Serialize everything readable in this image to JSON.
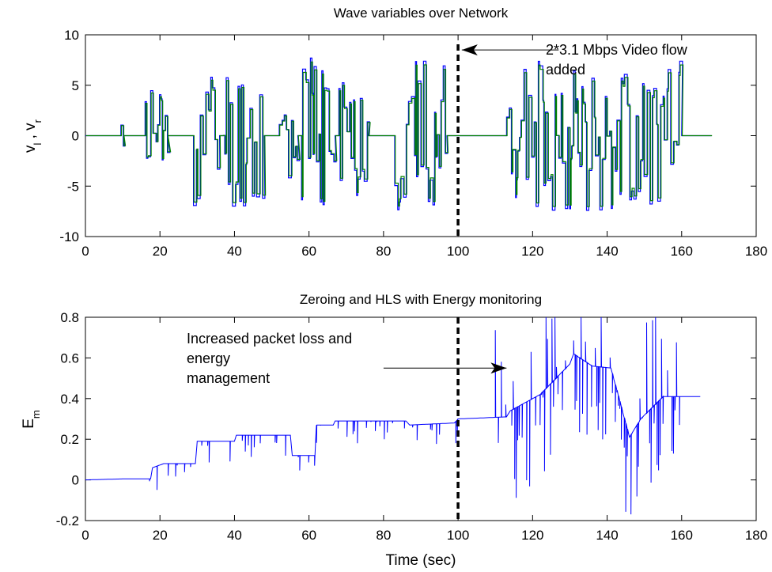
{
  "chart_data": [
    {
      "type": "line",
      "title": "Wave variables over Network",
      "xlabel": "",
      "ylabel": "v_l , v_r",
      "ylabel_parts": {
        "base1": "v",
        "sub1": "l",
        "sep": " , ",
        "base2": "v",
        "sub2": "r"
      },
      "xlim": [
        0,
        180
      ],
      "ylim": [
        -10,
        10
      ],
      "xticks": [
        "0",
        "20",
        "40",
        "60",
        "80",
        "100",
        "120",
        "140",
        "160",
        "180"
      ],
      "yticks": [
        "-10",
        "-5",
        "0",
        "5",
        "10"
      ],
      "grid": false,
      "legend": "none",
      "colors": {
        "v_l": "#0000ff",
        "v_r": "#007f00"
      },
      "bursts": [
        [
          9.5,
          10.2,
          1.3
        ],
        [
          16,
          22,
          6.5
        ],
        [
          29,
          36,
          7.5
        ],
        [
          37,
          48,
          7.5
        ],
        [
          52,
          57,
          5.0
        ],
        [
          58,
          67,
          8.0
        ],
        [
          68,
          76,
          7.0
        ],
        [
          83,
          97,
          8.0
        ],
        [
          113,
          160,
          7.5
        ]
      ],
      "marker": {
        "x": 100,
        "style": "dashed"
      },
      "annotation": {
        "lines": [
          "2*3.1 Mbps Video flow",
          "added"
        ],
        "arrow_from": [
          127,
          8.5
        ],
        "arrow_to": [
          101,
          8.5
        ]
      },
      "x_extent": [
        0,
        168
      ]
    },
    {
      "type": "line",
      "title": "Zeroing and HLS with Energy monitoring",
      "xlabel": "Time (sec)",
      "ylabel": "E_m",
      "ylabel_parts": {
        "base1": "E",
        "sub1": "m"
      },
      "xlim": [
        0,
        180
      ],
      "ylim": [
        -0.2,
        0.8
      ],
      "xticks": [
        "0",
        "20",
        "40",
        "60",
        "80",
        "100",
        "120",
        "140",
        "160",
        "180"
      ],
      "yticks": [
        "-0.2",
        "0",
        "0.2",
        "0.4",
        "0.6",
        "0.8"
      ],
      "grid": false,
      "legend": "none",
      "colors": {
        "E_m": "#0000ff"
      },
      "baseline": [
        [
          0,
          0.0
        ],
        [
          10,
          0.005
        ],
        [
          17.5,
          0.005
        ],
        [
          18,
          0.06
        ],
        [
          21,
          0.08
        ],
        [
          29.5,
          0.08
        ],
        [
          30,
          0.19
        ],
        [
          40,
          0.19
        ],
        [
          40.5,
          0.22
        ],
        [
          55,
          0.22
        ],
        [
          55.5,
          0.12
        ],
        [
          61.5,
          0.12
        ],
        [
          62,
          0.27
        ],
        [
          66.5,
          0.27
        ],
        [
          67,
          0.29
        ],
        [
          81,
          0.29
        ],
        [
          82,
          0.29
        ],
        [
          86,
          0.29
        ],
        [
          87,
          0.27
        ],
        [
          99,
          0.28
        ],
        [
          100,
          0.3
        ],
        [
          113,
          0.31
        ],
        [
          114,
          0.34
        ],
        [
          122,
          0.42
        ],
        [
          130,
          0.57
        ],
        [
          131,
          0.62
        ],
        [
          136,
          0.56
        ],
        [
          141,
          0.55
        ],
        [
          146,
          0.21
        ],
        [
          149,
          0.3
        ],
        [
          155,
          0.41
        ],
        [
          165,
          0.41
        ]
      ],
      "marker": {
        "x": 100,
        "style": "dashed"
      },
      "annotation": {
        "lines": [
          "Increased packet loss and",
          "energy",
          "management"
        ],
        "arrow_from": [
          80,
          0.55
        ],
        "arrow_to": [
          113,
          0.55
        ]
      },
      "x_extent": [
        0,
        165
      ]
    }
  ]
}
